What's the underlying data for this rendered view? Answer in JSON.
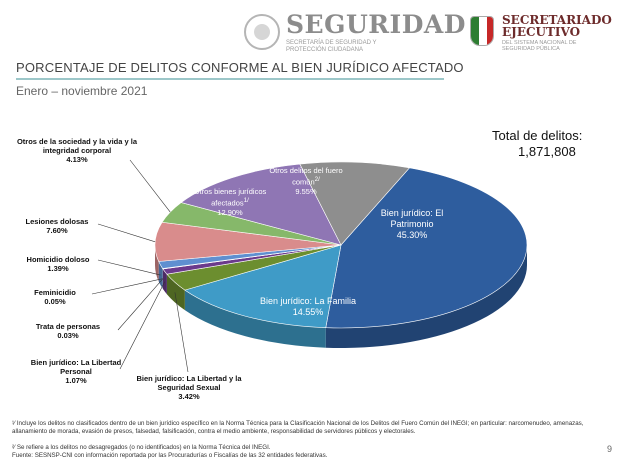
{
  "header": {
    "seguridad_title": "SEGURIDAD",
    "seguridad_sub": "SECRETARÍA DE SEGURIDAD Y PROTECCIÓN CIUDADANA",
    "sesnsp_title": "SECRETARIADO EJECUTIVO",
    "sesnsp_sub": "DEL SISTEMA NACIONAL DE SEGURIDAD PÚBLICA"
  },
  "title": "PORCENTAJE DE DELITOS CONFORME AL BIEN JURÍDICO AFECTADO",
  "subtitle": "Enero – noviembre 2021",
  "total": {
    "label": "Total de delitos:",
    "value": "1,871,808"
  },
  "colors": {
    "patrimonio": "#2e5d9e",
    "familia": "#3f9bc7",
    "libertad_sexual": "#6c8e2f",
    "libertad_personal": "#6b3a8c",
    "trata": "#3a5f9a",
    "feminicidio": "#a8c4e6",
    "homicidio": "#5f8fd0",
    "lesiones": "#d98c8c",
    "otros_sociedad": "#86b86a",
    "otros_bienes": "#8f76b4",
    "fuero_comun": "#8e8e8e"
  },
  "chart_data": {
    "type": "pie",
    "title": "PORCENTAJE DE DELITOS CONFORME AL BIEN JURÍDICO AFECTADO",
    "slices": [
      {
        "label": "Bien jurídico: El Patrimonio",
        "pct_text": "45.30%",
        "value": 45.3,
        "color_key": "patrimonio"
      },
      {
        "label": "Bien jurídico: La Familia",
        "pct_text": "14.55%",
        "value": 14.55,
        "color_key": "familia"
      },
      {
        "label": "Bien jurídico: La Libertad y la Seguridad Sexual",
        "pct_text": "3.42%",
        "value": 3.42,
        "color_key": "libertad_sexual"
      },
      {
        "label": "Bien jurídico: La Libertad Personal",
        "pct_text": "1.07%",
        "value": 1.07,
        "color_key": "libertad_personal"
      },
      {
        "label": "Trata de personas",
        "pct_text": "0.03%",
        "value": 0.03,
        "color_key": "trata"
      },
      {
        "label": "Feminicidio",
        "pct_text": "0.05%",
        "value": 0.05,
        "color_key": "feminicidio"
      },
      {
        "label": "Homicidio doloso",
        "pct_text": "1.39%",
        "value": 1.39,
        "color_key": "homicidio"
      },
      {
        "label": "Lesiones dolosas",
        "pct_text": "7.60%",
        "value": 7.6,
        "color_key": "lesiones"
      },
      {
        "label": "Otros de la sociedad y la vida y la integridad corporal",
        "pct_text": "4.13%",
        "value": 4.13,
        "color_key": "otros_sociedad"
      },
      {
        "label": "Otros bienes jurídicos afectados",
        "pct_text": "12.90%",
        "value": 12.9,
        "color_key": "otros_bienes",
        "note": "1/"
      },
      {
        "label": "Otros delitos del fuero común",
        "pct_text": "9.55%",
        "value": 9.55,
        "color_key": "fuero_comun",
        "note": "2/"
      }
    ]
  },
  "footnotes": [
    "¹⁄ Incluye los delitos no clasificados dentro de un bien jurídico específico en la Norma Técnica para la Clasificación Nacional de los Delitos del Fuero Común del INEGI; en particular: narcomenudeo, amenazas, allanamiento de morada, evasión de presos, falsedad, falsificación, contra el medio ambiente, responsabilidad de servidores públicos y electorales.",
    "²⁄ Se refiere a los delitos no desagregados (o no identificados) en la Norma Técnica del INEGI.",
    "Fuente: SESNSP-CNI con información reportada por las Procuradurías o Fiscalías de las 32 entidades federativas."
  ],
  "page_number": "9"
}
